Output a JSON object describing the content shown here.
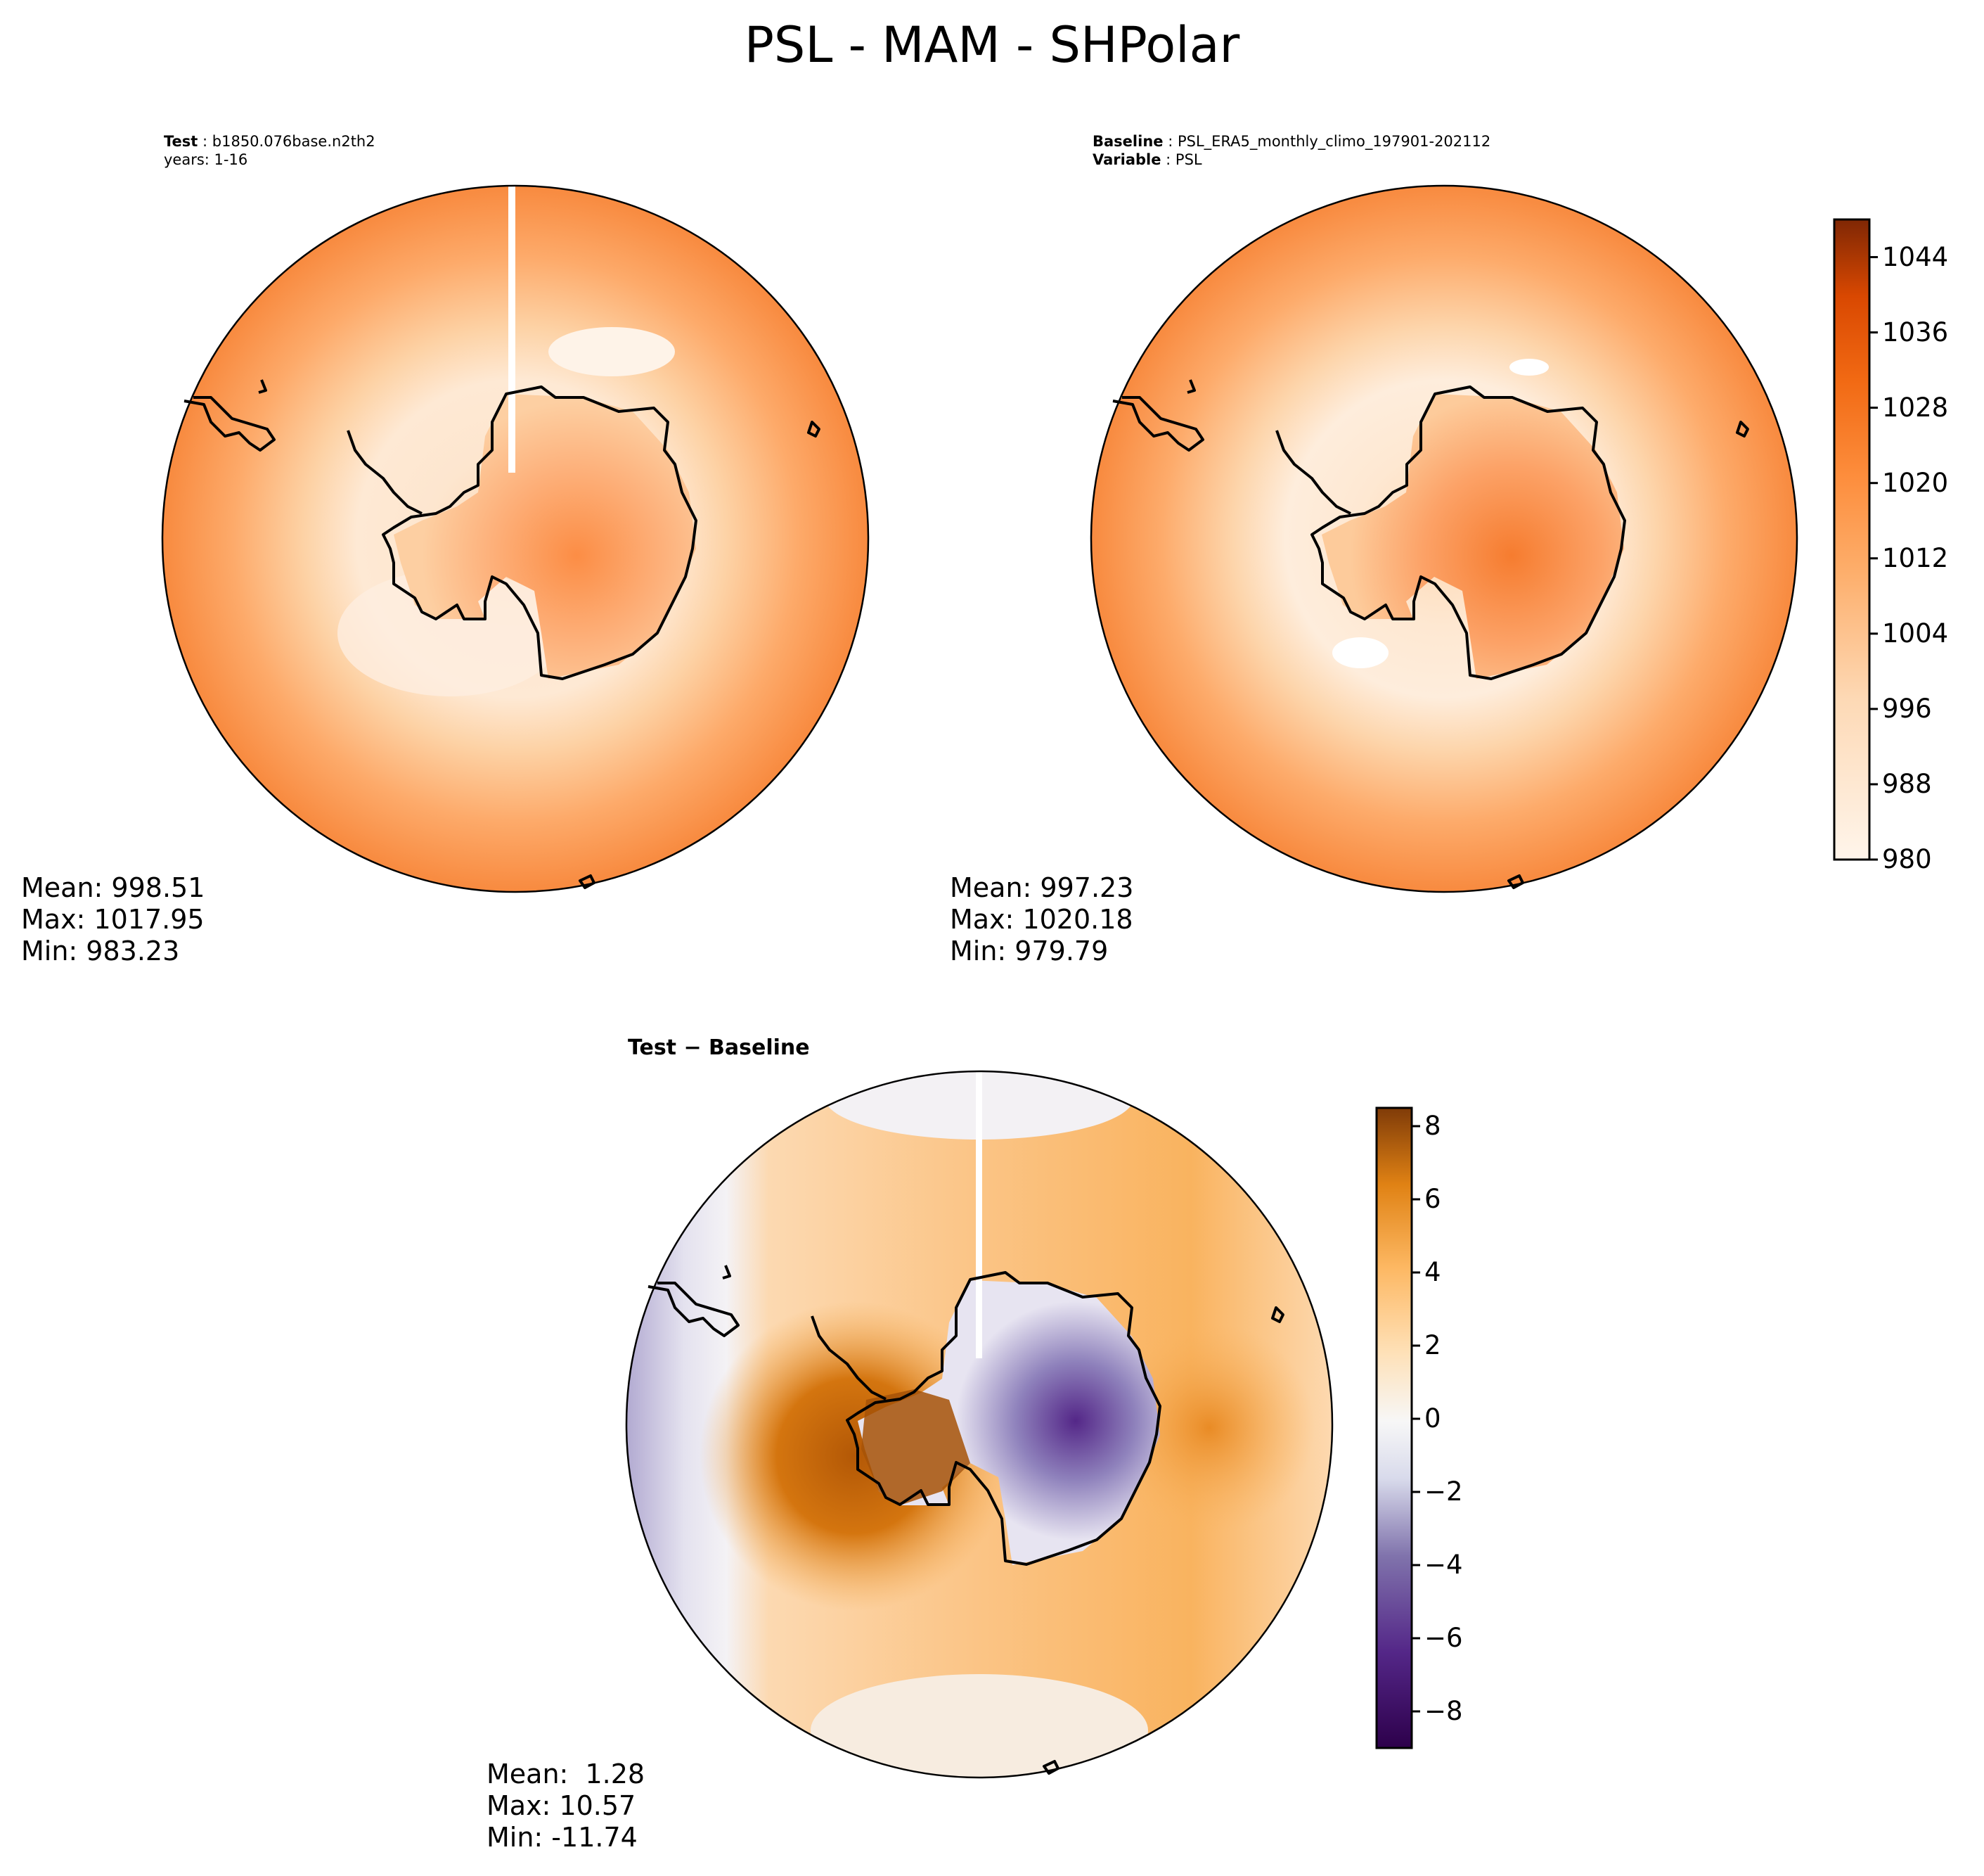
{
  "figure": {
    "title": "PSL - MAM - SHPolar"
  },
  "chart_data": [
    {
      "type": "heatmap",
      "projection": "south-polar-stereographic",
      "panel": "test",
      "header": {
        "label": "Test",
        "value": "b1850.076base.n2th2",
        "line2": "years: 1-16"
      },
      "stats": {
        "mean": "Mean: 998.51",
        "max": "Max: 1017.95",
        "min": "Min: 983.23"
      },
      "field": "PSL",
      "range": [
        980,
        1048
      ],
      "colormap": "Oranges"
    },
    {
      "type": "heatmap",
      "projection": "south-polar-stereographic",
      "panel": "baseline",
      "header": {
        "label": "Baseline",
        "value": "PSL_ERA5_monthly_climo_197901-202112",
        "label2": "Variable",
        "value2": "PSL"
      },
      "stats": {
        "mean": "Mean: 997.23",
        "max": "Max: 1020.18",
        "min": "Min: 979.79"
      },
      "field": "PSL",
      "range": [
        980,
        1048
      ],
      "colormap": "Oranges",
      "colorbar": {
        "ticks": [
          "980",
          "988",
          "996",
          "1004",
          "1012",
          "1020",
          "1028",
          "1036",
          "1044"
        ],
        "tick_values": [
          980,
          988,
          996,
          1004,
          1012,
          1020,
          1028,
          1036,
          1044
        ],
        "range": [
          980,
          1048
        ],
        "levels": 17
      }
    },
    {
      "type": "heatmap",
      "projection": "south-polar-stereographic",
      "panel": "difference",
      "header": {
        "label": "Test − Baseline"
      },
      "stats": {
        "mean": "Mean:  1.28",
        "max": "Max: 10.57",
        "min": "Min: -11.74"
      },
      "range": [
        -9,
        8.5
      ],
      "colormap": "PuOr_r",
      "colorbar": {
        "ticks": [
          "8",
          "6",
          "4",
          "2",
          "0",
          "−2",
          "−4",
          "−6",
          "−8"
        ],
        "tick_values": [
          8,
          6,
          4,
          2,
          0,
          -2,
          -4,
          -6,
          -8
        ],
        "range": [
          -9,
          8.5
        ],
        "levels": 24
      }
    }
  ]
}
